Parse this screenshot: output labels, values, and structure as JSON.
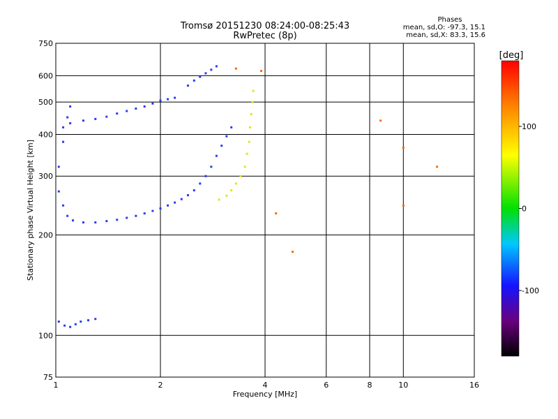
{
  "chart_data": {
    "type": "scatter",
    "title": "Tromsø 20151230 08:24:00-08:25:43",
    "subtitle": "RwPretec (8p)",
    "xlabel": "Frequency [MHz]",
    "ylabel": "Stationary phase Virtual Height [km]",
    "x_scale": "log",
    "y_scale": "log",
    "xlim": [
      1,
      16
    ],
    "ylim": [
      75,
      750
    ],
    "x_ticks": [
      1,
      2,
      4,
      6,
      8,
      10,
      16
    ],
    "x_tick_labels": [
      "1",
      "2",
      "4",
      "6",
      "8",
      "10",
      "16"
    ],
    "y_ticks": [
      75,
      100,
      200,
      300,
      400,
      500,
      600,
      750
    ],
    "y_tick_labels": [
      "75",
      "100",
      "200",
      "300",
      "400",
      "500",
      "600",
      "750"
    ],
    "grid": true,
    "legend": {
      "title": "Phases",
      "lines": [
        "mean, sd,O: -97.3, 15.1",
        "mean, sd,X: 83.3, 15.6"
      ],
      "placement": "top-right"
    },
    "colorbar": {
      "label": "[deg]",
      "range": [
        -180,
        180
      ],
      "ticks": [
        -100,
        0,
        100
      ],
      "tick_labels": [
        "-100",
        "0",
        "100"
      ]
    },
    "series": [
      {
        "mode": "O",
        "color": "#2a3cf0",
        "points": [
          [
            1.02,
            110
          ],
          [
            1.06,
            107
          ],
          [
            1.1,
            106
          ],
          [
            1.14,
            108
          ],
          [
            1.18,
            110
          ],
          [
            1.24,
            111
          ],
          [
            1.3,
            112
          ],
          [
            1.02,
            270
          ],
          [
            1.05,
            245
          ],
          [
            1.08,
            228
          ],
          [
            1.12,
            221
          ],
          [
            1.2,
            218
          ],
          [
            1.3,
            218
          ],
          [
            1.4,
            220
          ],
          [
            1.5,
            222
          ],
          [
            1.6,
            225
          ],
          [
            1.7,
            228
          ],
          [
            1.8,
            232
          ],
          [
            1.9,
            236
          ],
          [
            2.0,
            240
          ],
          [
            2.1,
            245
          ],
          [
            2.2,
            250
          ],
          [
            2.3,
            256
          ],
          [
            2.4,
            263
          ],
          [
            2.5,
            272
          ],
          [
            2.6,
            285
          ],
          [
            2.7,
            300
          ],
          [
            2.8,
            320
          ],
          [
            2.9,
            345
          ],
          [
            3.0,
            370
          ],
          [
            3.1,
            395
          ],
          [
            3.2,
            420
          ],
          [
            1.05,
            420
          ],
          [
            1.1,
            432
          ],
          [
            1.2,
            440
          ],
          [
            1.3,
            445
          ],
          [
            1.4,
            452
          ],
          [
            1.5,
            462
          ],
          [
            1.6,
            470
          ],
          [
            1.7,
            478
          ],
          [
            1.8,
            485
          ],
          [
            1.9,
            495
          ],
          [
            2.0,
            505
          ],
          [
            2.1,
            510
          ],
          [
            2.2,
            515
          ],
          [
            1.02,
            320
          ],
          [
            1.05,
            380
          ],
          [
            1.08,
            450
          ],
          [
            1.1,
            485
          ],
          [
            2.4,
            560
          ],
          [
            2.5,
            580
          ],
          [
            2.6,
            595
          ],
          [
            2.7,
            610
          ],
          [
            2.8,
            625
          ],
          [
            2.9,
            640
          ]
        ]
      },
      {
        "mode": "X",
        "color": "#e4e41a",
        "points": [
          [
            2.95,
            255
          ],
          [
            3.1,
            262
          ],
          [
            3.2,
            272
          ],
          [
            3.3,
            285
          ],
          [
            3.4,
            300
          ],
          [
            3.5,
            320
          ],
          [
            3.55,
            350
          ],
          [
            3.6,
            380
          ],
          [
            3.62,
            420
          ],
          [
            3.65,
            460
          ],
          [
            3.68,
            500
          ],
          [
            3.7,
            540
          ]
        ]
      },
      {
        "mode": "scattered",
        "color": "#ff6a00",
        "points": [
          [
            4.3,
            232
          ],
          [
            4.8,
            178
          ],
          [
            8.6,
            440
          ],
          [
            10.0,
            245
          ],
          [
            10.0,
            365
          ],
          [
            12.5,
            320
          ],
          [
            3.3,
            630
          ],
          [
            3.9,
            620
          ]
        ]
      }
    ]
  }
}
